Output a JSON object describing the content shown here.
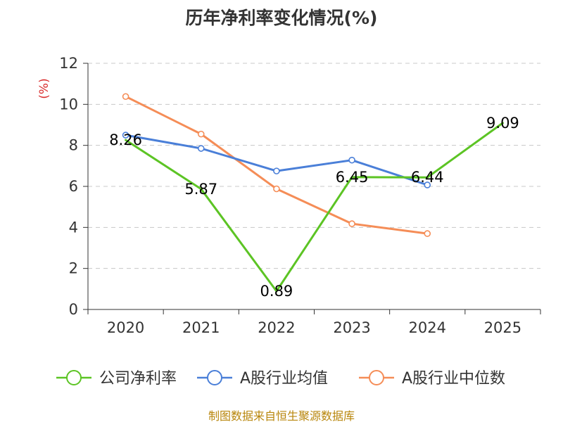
{
  "chart_data": {
    "type": "line",
    "title": "历年净利率变化情况(%)",
    "ylabel": "(%)",
    "xlabel": "",
    "categories": [
      "2020",
      "2021",
      "2022",
      "2023",
      "2024",
      "2025"
    ],
    "ylim": [
      0,
      12
    ],
    "yticks": [
      0,
      2,
      4,
      6,
      8,
      10,
      12
    ],
    "grid": true,
    "legend_position": "bottom",
    "series": [
      {
        "name": "公司净利率",
        "color": "#5cc424",
        "values": [
          8.26,
          5.87,
          0.89,
          6.45,
          6.44,
          9.09
        ],
        "labels": [
          "8.26",
          "5.87",
          "0.89",
          "6.45",
          "6.44",
          "9.09"
        ],
        "show_markers": false
      },
      {
        "name": "A股行业均值",
        "color": "#4a7fd8",
        "values": [
          8.5,
          7.85,
          6.75,
          7.28,
          6.07,
          null
        ],
        "show_markers": true
      },
      {
        "name": "A股行业中位数",
        "color": "#f58d57",
        "values": [
          10.38,
          8.55,
          5.88,
          4.18,
          3.7,
          null
        ],
        "show_markers": true
      }
    ]
  },
  "footer": {
    "source": "制图数据来自恒生聚源数据库"
  }
}
